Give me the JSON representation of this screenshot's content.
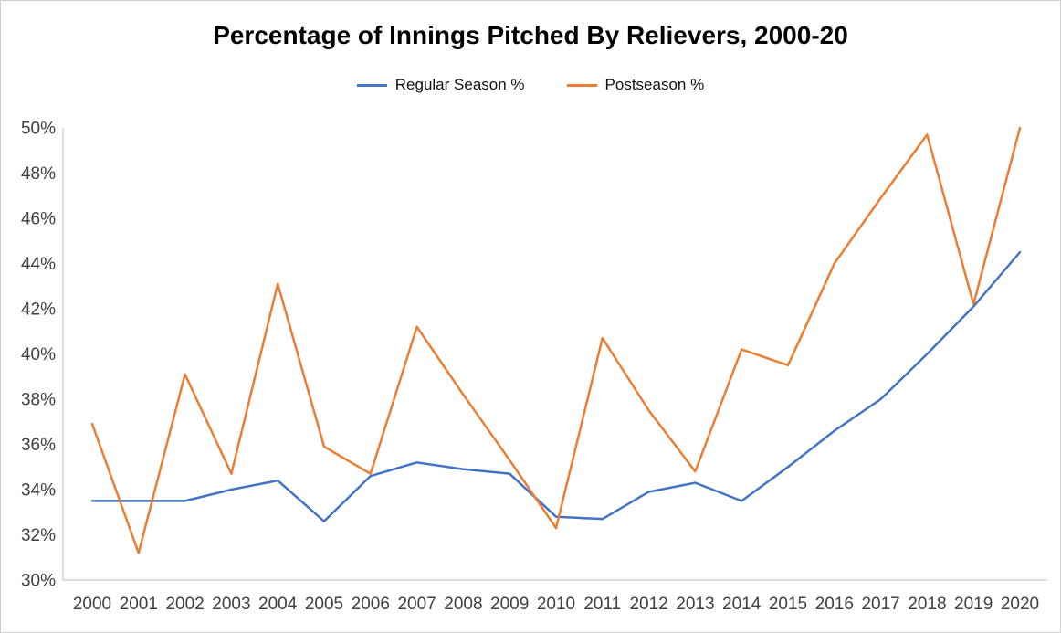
{
  "chart_data": {
    "type": "line",
    "title": "Percentage of Innings Pitched By Relievers, 2000-20",
    "categories": [
      "2000",
      "2001",
      "2002",
      "2003",
      "2004",
      "2005",
      "2006",
      "2007",
      "2008",
      "2009",
      "2010",
      "2011",
      "2012",
      "2013",
      "2014",
      "2015",
      "2016",
      "2017",
      "2018",
      "2019",
      "2020"
    ],
    "series": [
      {
        "name": "Regular Season %",
        "color": "#4472C4",
        "values": [
          33.5,
          33.5,
          33.5,
          34.0,
          34.4,
          32.6,
          34.6,
          35.2,
          34.9,
          34.7,
          32.8,
          32.7,
          33.9,
          34.3,
          33.5,
          35.0,
          36.6,
          38.0,
          40.0,
          42.1,
          44.5
        ]
      },
      {
        "name": "Postseason %",
        "color": "#ED7D31",
        "values": [
          36.9,
          31.2,
          39.1,
          34.7,
          43.1,
          35.9,
          34.7,
          41.2,
          38.2,
          35.3,
          32.3,
          40.7,
          37.5,
          34.8,
          40.2,
          39.5,
          44.0,
          46.9,
          49.7,
          42.2,
          50.0
        ]
      }
    ],
    "xlabel": "",
    "ylabel": "",
    "ylim": [
      30,
      50
    ],
    "ytick_step": 2,
    "ytick_labels": [
      "30%",
      "32%",
      "34%",
      "36%",
      "38%",
      "40%",
      "42%",
      "44%",
      "46%",
      "48%",
      "50%"
    ],
    "legend_position": "top",
    "grid": false,
    "axis_color": "#BFBFBF",
    "tick_color": "#404040",
    "line_width": 2.5
  }
}
